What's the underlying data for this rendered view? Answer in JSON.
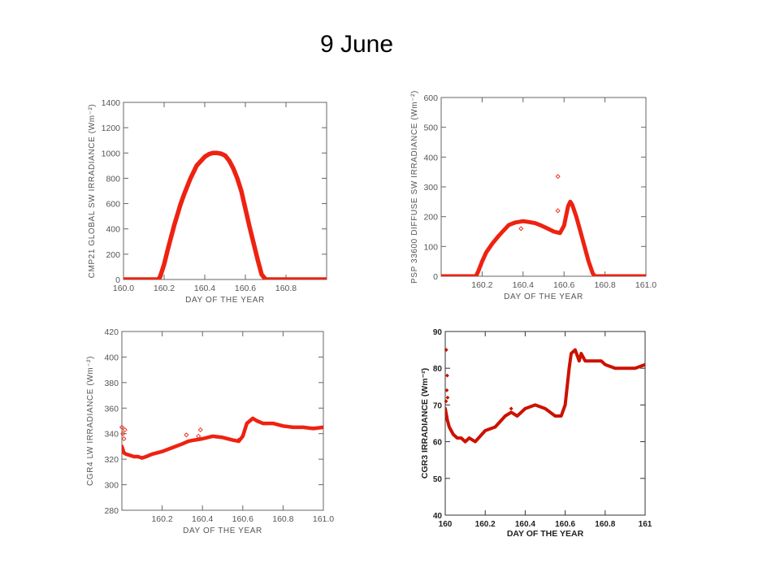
{
  "page": {
    "title": "9 June"
  },
  "chart_data": [
    {
      "type": "line",
      "xlabel": "DAY OF THE YEAR",
      "ylabel": "CMP21 GLOBAL SW IRRADIANCE (Wm⁻²)",
      "xlim": [
        160.0,
        161.0
      ],
      "ylim": [
        0,
        1400
      ],
      "xticks": [
        160.0,
        160.2,
        160.4,
        160.6,
        160.8
      ],
      "yticks": [
        0,
        200,
        400,
        600,
        800,
        1000,
        1200,
        1400
      ],
      "color": "#ee2211",
      "grid": false,
      "series": [
        {
          "x": [
            160.0,
            160.17,
            160.18,
            160.2,
            160.22,
            160.25,
            160.28,
            160.3,
            160.33,
            160.36,
            160.4,
            160.42,
            160.44,
            160.46,
            160.48,
            160.5,
            160.52,
            160.54,
            160.56,
            160.58,
            160.6,
            160.62,
            160.64,
            160.66,
            160.68,
            160.7,
            161.0
          ],
          "y": [
            0,
            0,
            20,
            120,
            250,
            430,
            590,
            680,
            800,
            900,
            970,
            990,
            1000,
            1000,
            995,
            980,
            940,
            880,
            800,
            700,
            560,
            420,
            290,
            160,
            40,
            0,
            0
          ]
        }
      ],
      "points": []
    },
    {
      "type": "line",
      "xlabel": "DAY OF THE YEAR",
      "ylabel": "PSP 33600 DIFFUSE SW IRRADIANCE (Wm⁻²)",
      "xlim": [
        160.0,
        161.0
      ],
      "ylim": [
        0,
        600
      ],
      "xticks": [
        160.2,
        160.4,
        160.6,
        160.8,
        161.0
      ],
      "yticks": [
        0,
        100,
        200,
        300,
        400,
        500,
        600
      ],
      "color": "#ee2211",
      "grid": false,
      "series": [
        {
          "x": [
            160.0,
            160.17,
            160.18,
            160.2,
            160.22,
            160.25,
            160.28,
            160.3,
            160.33,
            160.36,
            160.4,
            160.43,
            160.46,
            160.49,
            160.52,
            160.55,
            160.58,
            160.6,
            160.62,
            160.63,
            160.64,
            160.66,
            160.68,
            160.7,
            160.72,
            160.74,
            160.75,
            161.0
          ],
          "y": [
            0,
            0,
            15,
            50,
            80,
            110,
            135,
            150,
            172,
            180,
            185,
            182,
            178,
            170,
            160,
            150,
            145,
            170,
            235,
            250,
            240,
            200,
            150,
            100,
            50,
            10,
            0,
            0
          ]
        }
      ],
      "points": [
        {
          "x": 160.57,
          "y": 335
        },
        {
          "x": 160.57,
          "y": 220
        },
        {
          "x": 160.39,
          "y": 160
        }
      ]
    },
    {
      "type": "line",
      "xlabel": "DAY OF THE YEAR",
      "ylabel": "CGR4 LW IRRADIANCE (Wm⁻²)",
      "xlim": [
        160.0,
        161.0
      ],
      "ylim": [
        280,
        420
      ],
      "xticks": [
        160.2,
        160.4,
        160.6,
        160.8,
        161.0
      ],
      "yticks": [
        280,
        300,
        320,
        340,
        360,
        380,
        400,
        420
      ],
      "color": "#ee2211",
      "grid": false,
      "series": [
        {
          "x": [
            160.0,
            160.01,
            160.02,
            160.04,
            160.06,
            160.08,
            160.1,
            160.12,
            160.15,
            160.2,
            160.25,
            160.3,
            160.33,
            160.36,
            160.4,
            160.45,
            160.5,
            160.55,
            160.58,
            160.6,
            160.62,
            160.65,
            160.67,
            160.7,
            160.75,
            160.8,
            160.85,
            160.9,
            160.95,
            161.0
          ],
          "y": [
            330,
            325,
            324,
            323,
            322,
            322,
            321,
            322,
            324,
            326,
            329,
            332,
            334,
            335,
            336,
            338,
            337,
            335,
            334,
            338,
            348,
            352,
            350,
            348,
            348,
            346,
            345,
            345,
            344,
            345
          ]
        }
      ],
      "points": [
        {
          "x": 160.0,
          "y": 345
        },
        {
          "x": 160.005,
          "y": 340
        },
        {
          "x": 160.01,
          "y": 336
        },
        {
          "x": 160.015,
          "y": 343
        },
        {
          "x": 160.32,
          "y": 339
        },
        {
          "x": 160.39,
          "y": 343
        },
        {
          "x": 160.38,
          "y": 338
        },
        {
          "x": 160.58,
          "y": 335
        }
      ]
    },
    {
      "type": "line",
      "xlabel": "DAY OF THE YEAR",
      "ylabel": "CGR3 IRRADIANCE (Wm⁻²)",
      "xlim": [
        160,
        161
      ],
      "ylim": [
        40,
        90
      ],
      "xticks": [
        "160",
        "160.2",
        "160.4",
        "160.6",
        "160.8",
        "161"
      ],
      "yticks": [
        40,
        50,
        60,
        70,
        80,
        90
      ],
      "color": "#cc1100",
      "grid": false,
      "series": [
        {
          "x": [
            160.0,
            160.01,
            160.02,
            160.04,
            160.06,
            160.08,
            160.1,
            160.12,
            160.15,
            160.2,
            160.25,
            160.3,
            160.33,
            160.36,
            160.4,
            160.45,
            160.5,
            160.55,
            160.58,
            160.6,
            160.62,
            160.63,
            160.65,
            160.67,
            160.68,
            160.7,
            160.72,
            160.75,
            160.78,
            160.8,
            160.85,
            160.9,
            160.95,
            161.0
          ],
          "y": [
            69,
            66,
            64,
            62,
            61,
            61,
            60,
            61,
            60,
            63,
            64,
            67,
            68,
            67,
            69,
            70,
            69,
            67,
            67,
            70,
            80,
            84,
            85,
            82,
            84,
            82,
            82,
            82,
            82,
            81,
            80,
            80,
            80,
            81
          ]
        }
      ],
      "points": [
        {
          "x": 160.005,
          "y": 85
        },
        {
          "x": 160.01,
          "y": 78
        },
        {
          "x": 160.008,
          "y": 74
        },
        {
          "x": 160.012,
          "y": 72
        },
        {
          "x": 160.004,
          "y": 71
        },
        {
          "x": 160.33,
          "y": 69
        }
      ]
    }
  ]
}
